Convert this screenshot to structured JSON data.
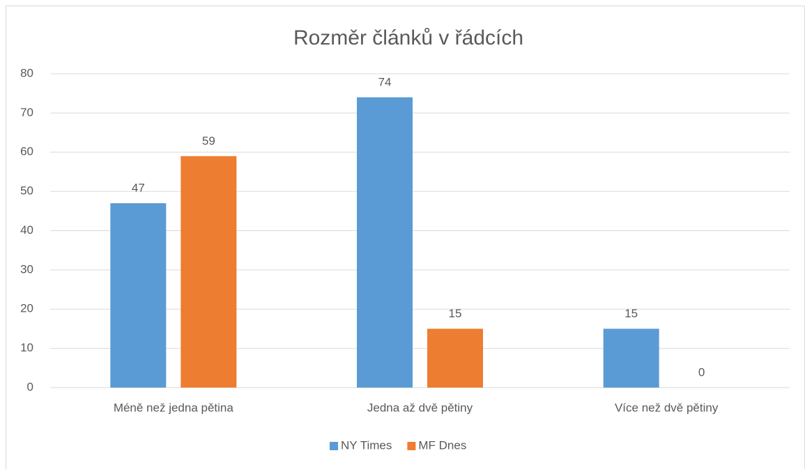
{
  "chart_data": {
    "type": "bar",
    "title": "Rozměr článků v řádcích",
    "categories": [
      "Méně než jedna pětina",
      "Jedna až dvě pětiny",
      "Více než dvě pětiny"
    ],
    "series": [
      {
        "name": "NY Times",
        "color": "#5b9bd5",
        "values": [
          47,
          74,
          15
        ]
      },
      {
        "name": "MF Dnes",
        "color": "#ed7d31",
        "values": [
          59,
          15,
          0
        ]
      }
    ],
    "ylim": [
      0,
      80
    ],
    "yticks": [
      0,
      10,
      20,
      30,
      40,
      50,
      60,
      70,
      80
    ],
    "grid": true,
    "legend": "bottom",
    "data_labels": true
  }
}
